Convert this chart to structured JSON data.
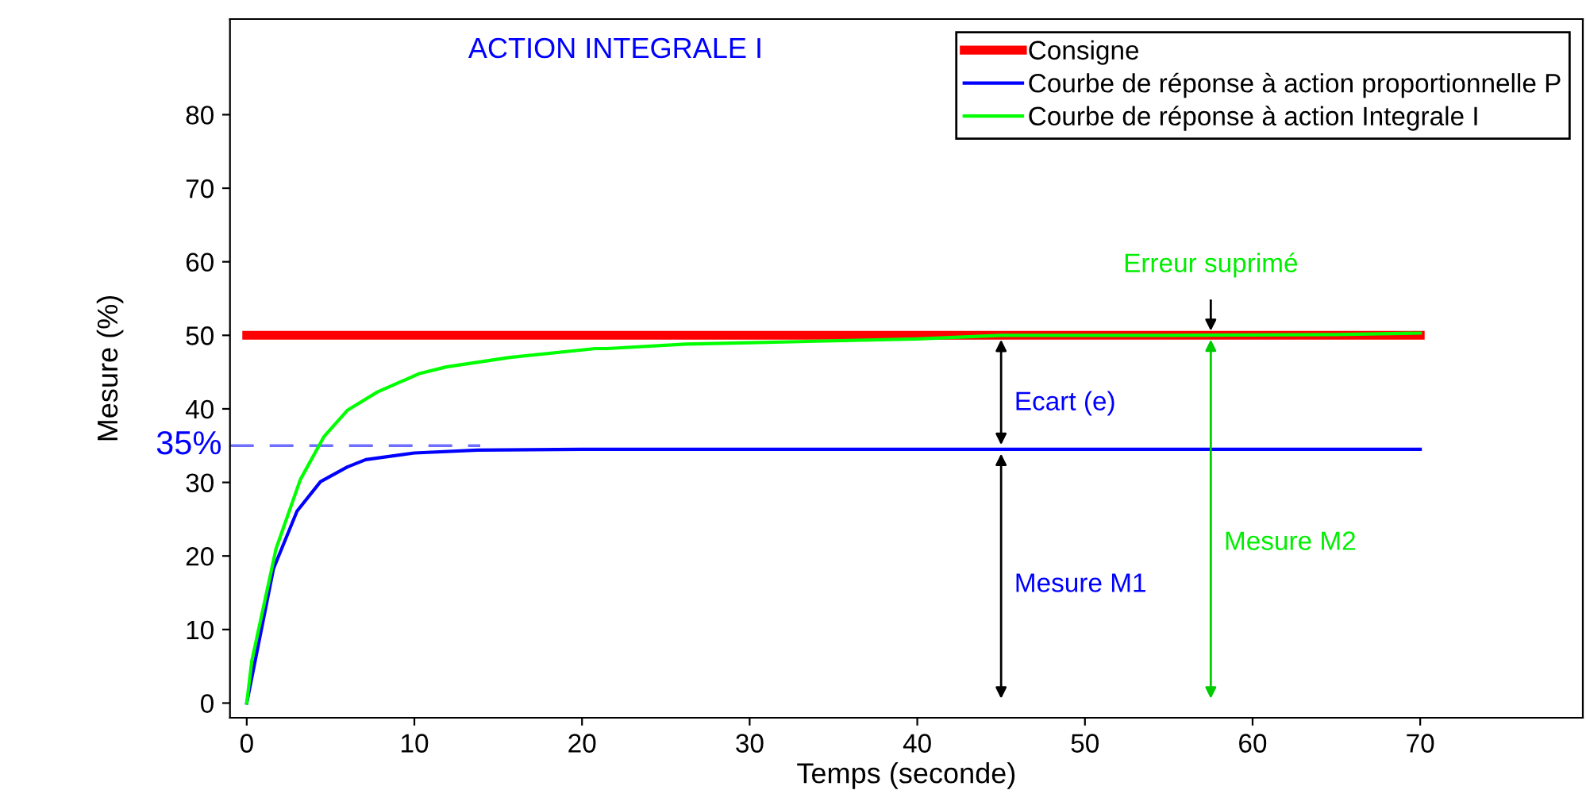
{
  "chart_data": {
    "type": "line",
    "title": "ACTION INTEGRALE I",
    "xlabel": "Temps (seconde)",
    "ylabel": "Mesure (%)",
    "xlim": [
      -1,
      79.7
    ],
    "ylim": [
      -2,
      93
    ],
    "xticks": [
      0,
      10,
      20,
      30,
      40,
      50,
      60,
      70
    ],
    "yticks": [
      0,
      10,
      20,
      30,
      40,
      50,
      60,
      70,
      80
    ],
    "grid": false,
    "legend": "top right",
    "line_style": "solid",
    "marker": "none",
    "series": [
      {
        "name": "Consigne",
        "color": "#ff0000",
        "x": [
          0,
          70
        ],
        "values": [
          50,
          50
        ]
      },
      {
        "name": "Courbe de réponse à action proportionnelle P",
        "color": "#0000ff",
        "x": [
          0,
          1.6,
          3.0,
          4.4,
          6.0,
          7.1,
          10.0,
          13.8,
          20,
          30,
          40,
          50,
          60,
          70
        ],
        "values": [
          0,
          18.3,
          26.1,
          30.1,
          32.1,
          33.1,
          34.0,
          34.4,
          34.5,
          34.5,
          34.5,
          34.5,
          34.5,
          34.5
        ]
      },
      {
        "name": "Courbe de réponse à action Integrale I",
        "color": "#00ff00",
        "x": [
          0,
          0.3,
          1.75,
          3.2,
          4.6,
          6.0,
          7.8,
          10.3,
          11.9,
          15.7,
          20.8,
          21.5,
          26.2,
          30,
          40,
          45,
          55,
          65,
          70
        ],
        "values": [
          0,
          5.7,
          21,
          30.4,
          36.2,
          39.8,
          42.3,
          44.8,
          45.7,
          47,
          48.2,
          48.2,
          48.8,
          49,
          49.5,
          50,
          50,
          50.1,
          50.3
        ]
      }
    ],
    "ref_lines": [
      {
        "axis": "y",
        "value": 35,
        "label": "35%",
        "color": "#6f6fff",
        "line_style": "dashed"
      }
    ],
    "annotations": [
      "Ecart (e)",
      "Mesure M1",
      "Mesure M2",
      "Erreur suprimé"
    ]
  }
}
